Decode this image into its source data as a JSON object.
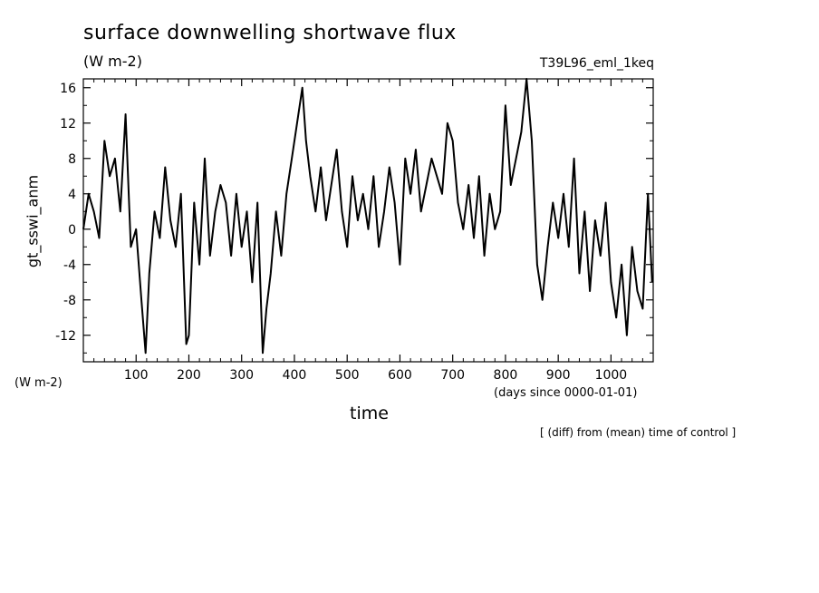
{
  "chart_data": {
    "type": "line",
    "title": "surface downwelling shortwave flux",
    "units_label": "(W m-2)",
    "experiment_label": "T39L96_eml_1keq",
    "ylabel": "gt_sswi_anm",
    "y_units_label": "(W m-2)",
    "xlabel": "time",
    "x_units_label": "(days since 0000-01-01)",
    "footnote": "[ (diff) from (mean) time of control ]",
    "xlim": [
      0,
      1080
    ],
    "ylim": [
      -15,
      17
    ],
    "x_ticks": [
      100,
      200,
      300,
      400,
      500,
      600,
      700,
      800,
      900,
      1000
    ],
    "y_ticks": [
      -12,
      -8,
      -4,
      0,
      4,
      8,
      12,
      16
    ],
    "grid": false,
    "series": [
      {
        "x": [
          0,
          10,
          20,
          30,
          40,
          50,
          60,
          70,
          80,
          90,
          100,
          110,
          118,
          125,
          135,
          145,
          155,
          165,
          175,
          185,
          195,
          200,
          210,
          220,
          230,
          240,
          250,
          260,
          270,
          280,
          290,
          300,
          310,
          320,
          330,
          340,
          347,
          355,
          365,
          375,
          385,
          395,
          405,
          415,
          422,
          430,
          440,
          450,
          460,
          470,
          480,
          490,
          500,
          510,
          520,
          530,
          540,
          550,
          560,
          570,
          580,
          590,
          600,
          610,
          620,
          630,
          640,
          650,
          660,
          670,
          680,
          690,
          700,
          710,
          720,
          730,
          740,
          750,
          760,
          770,
          780,
          790,
          800,
          810,
          820,
          830,
          840,
          850,
          860,
          870,
          880,
          890,
          900,
          910,
          920,
          930,
          940,
          950,
          960,
          970,
          980,
          990,
          1000,
          1010,
          1020,
          1030,
          1040,
          1050,
          1060,
          1070,
          1078
        ],
        "y": [
          0,
          4,
          2,
          -1,
          10,
          6,
          8,
          2,
          13,
          -2,
          0,
          -8,
          -14,
          -5,
          2,
          -1,
          7,
          1,
          -2,
          4,
          -13,
          -12,
          3,
          -4,
          8,
          -3,
          2,
          5,
          3,
          -3,
          4,
          -2,
          2,
          -6,
          3,
          -14,
          -9,
          -5,
          2,
          -3,
          4,
          8,
          12,
          16,
          10,
          6,
          2,
          7,
          1,
          5,
          9,
          2,
          -2,
          6,
          1,
          4,
          0,
          6,
          -2,
          2,
          7,
          3,
          -4,
          8,
          4,
          9,
          2,
          5,
          8,
          6,
          4,
          12,
          10,
          3,
          0,
          5,
          -1,
          6,
          -3,
          4,
          0,
          2,
          14,
          5,
          8,
          11,
          17,
          10,
          -4,
          -8,
          -2,
          3,
          -1,
          4,
          -2,
          8,
          -5,
          2,
          -7,
          1,
          -3,
          3,
          -6,
          -10,
          -4,
          -12,
          -2,
          -7,
          -9,
          4,
          -6
        ]
      }
    ]
  }
}
